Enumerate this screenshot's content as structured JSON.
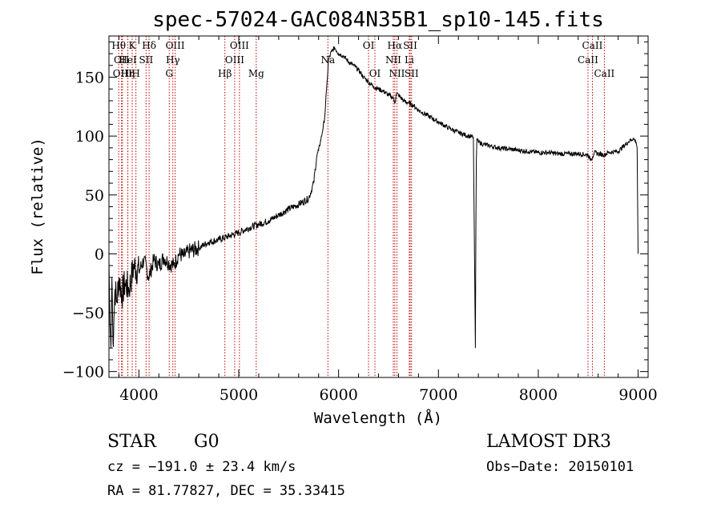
{
  "chart_data": {
    "type": "line",
    "title": "spec-57024-GAC084N35B1_sp10-145.fits",
    "xlabel": "Wavelength (Å)",
    "ylabel": "Flux (relative)",
    "xlim": [
      3700,
      9100
    ],
    "ylim": [
      -105,
      185
    ],
    "xticks": [
      4000,
      5000,
      6000,
      7000,
      8000,
      9000
    ],
    "yticks": [
      -100,
      -50,
      0,
      50,
      100,
      150
    ],
    "series": [
      {
        "name": "flux",
        "x": [
          3700,
          3710,
          3720,
          3730,
          3740,
          3750,
          3760,
          3780,
          3800,
          3830,
          3860,
          3900,
          3950,
          4000,
          4050,
          4100,
          4150,
          4200,
          4250,
          4300,
          4350,
          4400,
          4450,
          4500,
          4600,
          4700,
          4800,
          4900,
          5000,
          5100,
          5200,
          5300,
          5400,
          5500,
          5600,
          5700,
          5750,
          5780,
          5800,
          5830,
          5860,
          5880,
          5900,
          5930,
          5960,
          6000,
          6050,
          6100,
          6150,
          6200,
          6250,
          6300,
          6350,
          6400,
          6450,
          6500,
          6550,
          6562,
          6580,
          6600,
          6650,
          6700,
          6750,
          6800,
          6900,
          7000,
          7100,
          7200,
          7300,
          7350,
          7370,
          7375,
          7380,
          7385,
          7390,
          7400,
          7450,
          7500,
          7600,
          7700,
          7800,
          7900,
          8000,
          8100,
          8200,
          8300,
          8400,
          8500,
          8520,
          8542,
          8560,
          8600,
          8662,
          8700,
          8800,
          8900,
          8950,
          8980,
          8990,
          9000
        ],
        "values": [
          -5,
          -60,
          -80,
          -20,
          -75,
          -55,
          -30,
          -40,
          -20,
          -35,
          -25,
          -30,
          -10,
          -15,
          -5,
          -20,
          -5,
          -10,
          -3,
          -8,
          -10,
          0,
          -2,
          2,
          5,
          10,
          12,
          15,
          18,
          22,
          25,
          28,
          33,
          38,
          42,
          47,
          60,
          82,
          88,
          100,
          115,
          140,
          165,
          172,
          175,
          170,
          168,
          163,
          160,
          156,
          150,
          146,
          142,
          140,
          138,
          135,
          132,
          128,
          136,
          135,
          130,
          128,
          126,
          122,
          117,
          112,
          107,
          103,
          100,
          99,
          -80,
          20,
          80,
          98,
          97,
          95,
          93,
          92,
          90,
          89,
          88,
          87,
          86,
          86,
          85,
          85,
          85,
          84,
          80,
          82,
          86,
          85,
          84,
          86,
          87,
          95,
          98,
          95,
          90,
          0
        ]
      }
    ],
    "lines": [
      {
        "wl": 3798,
        "name": "Hθ",
        "row": 0
      },
      {
        "wl": 3826,
        "name": "OII",
        "row": 1
      },
      {
        "wl": 3835,
        "name": "OIII",
        "row": 2
      },
      {
        "wl": 3889,
        "name": "Hη",
        "row": 2
      },
      {
        "wl": 3933,
        "name": "K",
        "row": 0
      },
      {
        "wl": 3970,
        "name": "H",
        "row": 2
      },
      {
        "wl": 3889,
        "name": "HeI",
        "row": 1
      },
      {
        "wl": 4072,
        "name": "SII",
        "row": 1
      },
      {
        "wl": 4102,
        "name": "Hδ",
        "row": 0
      },
      {
        "wl": 4304,
        "name": "G",
        "row": 2
      },
      {
        "wl": 4340,
        "name": "Hγ",
        "row": 1
      },
      {
        "wl": 4363,
        "name": "OIII",
        "row": 0
      },
      {
        "wl": 4861,
        "name": "Hβ",
        "row": 2
      },
      {
        "wl": 4959,
        "name": "OIII",
        "row": 1
      },
      {
        "wl": 5007,
        "name": "OIII",
        "row": 0
      },
      {
        "wl": 5175,
        "name": "Mg",
        "row": 2
      },
      {
        "wl": 5893,
        "name": "Na",
        "row": 1
      },
      {
        "wl": 6300,
        "name": "OI",
        "row": 0
      },
      {
        "wl": 6364,
        "name": "OI",
        "row": 2
      },
      {
        "wl": 6548,
        "name": "NII",
        "row": 1
      },
      {
        "wl": 6563,
        "name": "Hα",
        "row": 0
      },
      {
        "wl": 6584,
        "name": "NII",
        "row": 2
      },
      {
        "wl": 6708,
        "name": "Li",
        "row": 1
      },
      {
        "wl": 6717,
        "name": "SII",
        "row": 0
      },
      {
        "wl": 6731,
        "name": "SII",
        "row": 2
      },
      {
        "wl": 8498,
        "name": "CaII",
        "row": 1
      },
      {
        "wl": 8542,
        "name": "CaII",
        "row": 0
      },
      {
        "wl": 8662,
        "name": "CaII",
        "row": 2
      }
    ]
  },
  "info": {
    "object_class": "STAR",
    "subclass": "G0",
    "survey": "LAMOST DR3",
    "redshift": "cz = −191.0 ± 23.4 km/s",
    "obs_date": "Obs−Date: 20150101",
    "coords": "RA =  81.77827, DEC =  35.33415"
  }
}
